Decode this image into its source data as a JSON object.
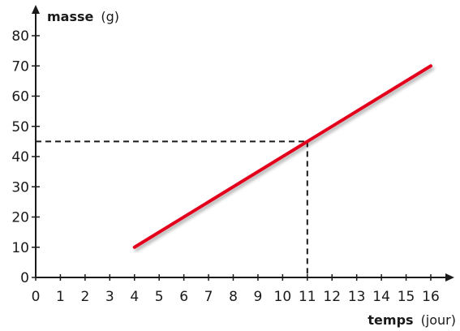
{
  "chart_data": {
    "type": "line",
    "x_axis": {
      "label": "temps",
      "unit": "(jour)",
      "range": [
        0,
        16
      ],
      "ticks": [
        0,
        1,
        2,
        3,
        4,
        5,
        6,
        7,
        8,
        9,
        10,
        11,
        12,
        13,
        14,
        15,
        16
      ]
    },
    "y_axis": {
      "label": "masse",
      "unit": "(g)",
      "range": [
        0,
        80
      ],
      "ticks": [
        0,
        10,
        20,
        30,
        40,
        50,
        60,
        70,
        80
      ]
    },
    "series": [
      {
        "x": [
          4,
          16
        ],
        "y": [
          10,
          70
        ],
        "color": "#e3001b"
      }
    ],
    "annotation": {
      "type": "dashed-guides",
      "x": 11,
      "y": 45
    },
    "grid": false,
    "colors": {
      "axis": "#1a1a1a",
      "line": "#e3001b",
      "guide": "#1a1a1a"
    }
  }
}
